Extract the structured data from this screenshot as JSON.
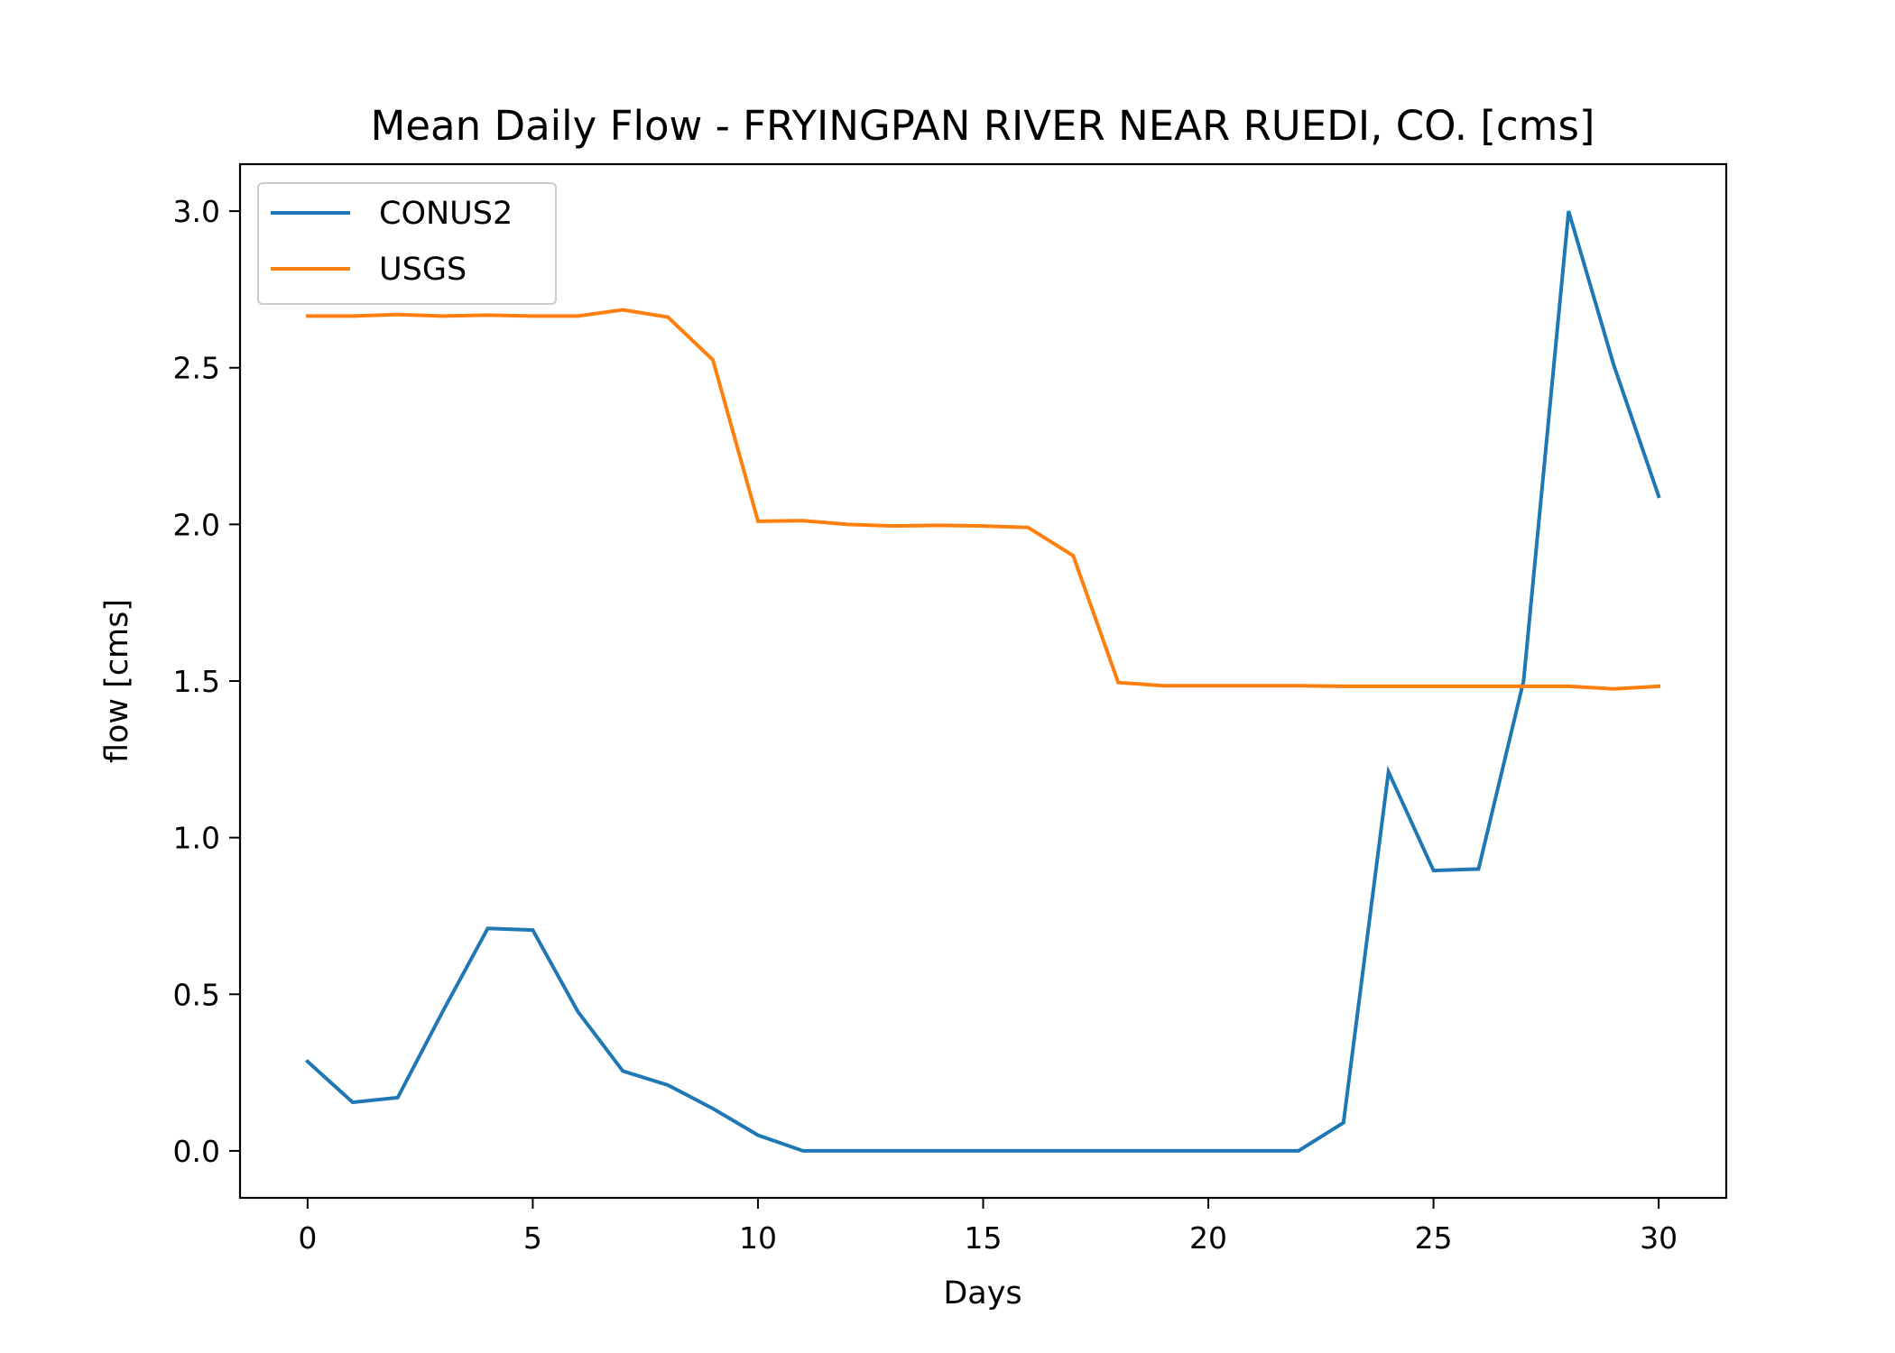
{
  "chart_data": {
    "type": "line",
    "title": "Mean Daily Flow - FRYINGPAN RIVER NEAR RUEDI, CO. [cms]",
    "xlabel": "Days",
    "ylabel": "flow [cms]",
    "xlim": [
      -1.5,
      31.5
    ],
    "ylim": [
      -0.15,
      3.15
    ],
    "xticks": [
      0,
      5,
      10,
      15,
      20,
      25,
      30
    ],
    "xtick_labels": [
      "0",
      "5",
      "10",
      "15",
      "20",
      "25",
      "30"
    ],
    "yticks": [
      0.0,
      0.5,
      1.0,
      1.5,
      2.0,
      2.5,
      3.0
    ],
    "ytick_labels": [
      "0.0",
      "0.5",
      "1.0",
      "1.5",
      "2.0",
      "2.5",
      "3.0"
    ],
    "grid": false,
    "legend_position": "upper-left",
    "x": [
      0,
      1,
      2,
      3,
      4,
      5,
      6,
      7,
      8,
      9,
      10,
      11,
      12,
      13,
      14,
      15,
      16,
      17,
      18,
      19,
      20,
      21,
      22,
      23,
      24,
      25,
      26,
      27,
      28,
      29,
      30
    ],
    "series": [
      {
        "name": "CONUS2",
        "color": "#1f77b4",
        "values": [
          0.285,
          0.155,
          0.17,
          0.445,
          0.71,
          0.705,
          0.445,
          0.255,
          0.21,
          0.135,
          0.05,
          0.0,
          0.0,
          0.0,
          0.0,
          0.0,
          0.0,
          0.0,
          0.0,
          0.0,
          0.0,
          0.0,
          0.0,
          0.09,
          1.21,
          0.895,
          0.9,
          1.5,
          3.0,
          2.51,
          2.09
        ]
      },
      {
        "name": "USGS",
        "color": "#ff7f0e",
        "values": [
          2.665,
          2.665,
          2.67,
          2.665,
          2.668,
          2.665,
          2.665,
          2.685,
          2.662,
          2.525,
          2.01,
          2.012,
          2.0,
          1.995,
          1.997,
          1.995,
          1.99,
          1.9,
          1.495,
          1.485,
          1.485,
          1.485,
          1.485,
          1.483,
          1.483,
          1.483,
          1.483,
          1.483,
          1.483,
          1.475,
          1.483
        ]
      }
    ]
  }
}
